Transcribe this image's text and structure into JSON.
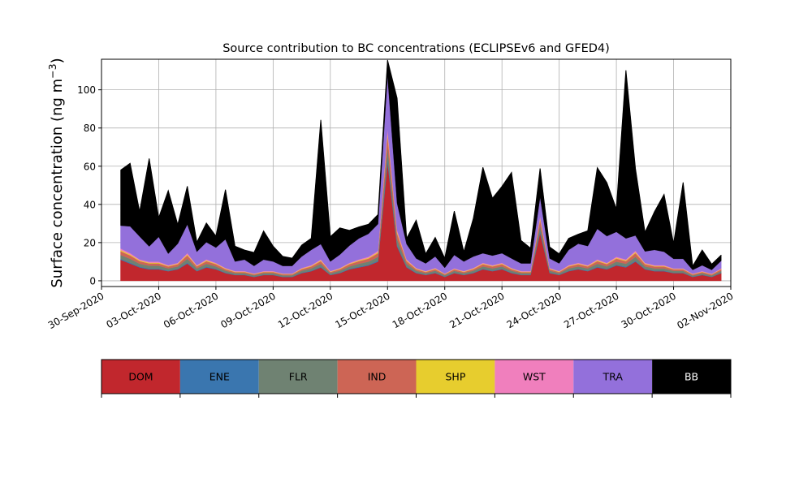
{
  "chart_data": {
    "type": "area",
    "stacked": true,
    "title": "Source contribution to BC concentrations (ECLIPSEv6 and GFED4)",
    "xlabel": "",
    "ylabel": "Surface concentration (ng m",
    "ylabel_sup": "−3",
    "ylabel_end": ")",
    "xlim": [
      "2020-09-30",
      "2020-11-02"
    ],
    "ylim": [
      -3,
      116
    ],
    "grid": true,
    "x_ticks": [
      "30-Sep-2020",
      "03-Oct-2020",
      "06-Oct-2020",
      "09-Oct-2020",
      "12-Oct-2020",
      "15-Oct-2020",
      "18-Oct-2020",
      "21-Oct-2020",
      "24-Oct-2020",
      "27-Oct-2020",
      "30-Oct-2020",
      "02-Nov-2020"
    ],
    "y_ticks": [
      0,
      20,
      40,
      60,
      80,
      100
    ],
    "legend_placement": "below",
    "x": [
      "2020-10-01",
      "2020-10-01T12",
      "2020-10-02",
      "2020-10-02T12",
      "2020-10-03",
      "2020-10-03T12",
      "2020-10-04",
      "2020-10-04T12",
      "2020-10-05",
      "2020-10-05T12",
      "2020-10-06",
      "2020-10-06T12",
      "2020-10-07",
      "2020-10-07T12",
      "2020-10-08",
      "2020-10-08T12",
      "2020-10-09",
      "2020-10-09T12",
      "2020-10-10",
      "2020-10-10T12",
      "2020-10-11",
      "2020-10-11T12",
      "2020-10-12",
      "2020-10-12T12",
      "2020-10-13",
      "2020-10-13T12",
      "2020-10-14",
      "2020-10-14T12",
      "2020-10-15",
      "2020-10-15T12",
      "2020-10-16",
      "2020-10-16T12",
      "2020-10-17",
      "2020-10-17T12",
      "2020-10-18",
      "2020-10-18T12",
      "2020-10-19",
      "2020-10-19T12",
      "2020-10-20",
      "2020-10-20T12",
      "2020-10-21",
      "2020-10-21T12",
      "2020-10-22",
      "2020-10-22T12",
      "2020-10-23",
      "2020-10-23T12",
      "2020-10-24",
      "2020-10-24T12",
      "2020-10-25",
      "2020-10-25T12",
      "2020-10-26",
      "2020-10-26T12",
      "2020-10-27",
      "2020-10-27T12",
      "2020-10-28",
      "2020-10-28T12",
      "2020-10-29",
      "2020-10-29T12",
      "2020-10-30",
      "2020-10-30T12",
      "2020-10-31",
      "2020-10-31T12",
      "2020-11-01",
      "2020-11-01T12"
    ],
    "series": [
      {
        "name": "DOM",
        "color": "#c1272d",
        "values": [
          11,
          9,
          7,
          6,
          6,
          5,
          6,
          9,
          5,
          7,
          6,
          4,
          3,
          3,
          2,
          3,
          3,
          2,
          2,
          4,
          5,
          7,
          3,
          4,
          6,
          7,
          8,
          10,
          62,
          18,
          7,
          4,
          3,
          4,
          2,
          4,
          3,
          4,
          6,
          5,
          6,
          4,
          3,
          3,
          25,
          4,
          3,
          5,
          6,
          5,
          7,
          6,
          8,
          7,
          10,
          6,
          5,
          5,
          4,
          4,
          2,
          3,
          2,
          4
        ]
      },
      {
        "name": "ENE",
        "color": "#3a76af",
        "values": [
          0.5,
          0.5,
          0.4,
          0.4,
          0.4,
          0.3,
          0.3,
          0.5,
          0.3,
          0.4,
          0.3,
          0.3,
          0.2,
          0.2,
          0.2,
          0.2,
          0.2,
          0.2,
          0.2,
          0.3,
          0.3,
          0.4,
          0.2,
          0.3,
          0.3,
          0.4,
          0.4,
          0.5,
          2.0,
          0.8,
          0.4,
          0.3,
          0.2,
          0.3,
          0.2,
          0.2,
          0.2,
          0.3,
          0.3,
          0.3,
          0.3,
          0.3,
          0.2,
          0.2,
          1.0,
          0.3,
          0.2,
          0.3,
          0.3,
          0.3,
          0.4,
          0.3,
          0.4,
          0.4,
          0.5,
          0.3,
          0.3,
          0.3,
          0.2,
          0.2,
          0.2,
          0.2,
          0.2,
          0.2
        ]
      },
      {
        "name": "FLR",
        "color": "#6f8272",
        "values": [
          2,
          2,
          1.5,
          1.5,
          1.5,
          1.2,
          1.2,
          2,
          1.2,
          1.5,
          1.2,
          1,
          0.8,
          0.8,
          0.7,
          0.8,
          0.8,
          0.7,
          0.7,
          1,
          1.2,
          1.5,
          0.8,
          1,
          1.2,
          1.5,
          1.6,
          2,
          6,
          3,
          1.5,
          1,
          0.8,
          1,
          0.7,
          1,
          0.8,
          1,
          1.2,
          1.2,
          1.2,
          1,
          0.8,
          0.8,
          3,
          1,
          0.8,
          1.2,
          1.2,
          1.2,
          1.5,
          1.2,
          1.6,
          1.5,
          2,
          1.2,
          1.2,
          1.2,
          1,
          1,
          0.6,
          0.8,
          0.6,
          1
        ]
      },
      {
        "name": "IND",
        "color": "#cd6555",
        "values": [
          2,
          1.8,
          1.4,
          1.2,
          1.2,
          1,
          1.2,
          1.8,
          1,
          1.4,
          1.2,
          0.8,
          0.6,
          0.6,
          0.5,
          0.6,
          0.6,
          0.5,
          0.5,
          0.8,
          1,
          1.4,
          0.6,
          0.8,
          1.2,
          1.4,
          1.6,
          2,
          6,
          3,
          1.4,
          0.8,
          0.6,
          0.8,
          0.5,
          0.8,
          0.6,
          0.8,
          1.2,
          1,
          1.2,
          0.8,
          0.6,
          0.6,
          3,
          0.8,
          0.6,
          1,
          1.2,
          1,
          1.4,
          1.2,
          1.6,
          1.4,
          2,
          1.2,
          1,
          1,
          0.8,
          0.8,
          0.5,
          0.6,
          0.5,
          0.8
        ]
      },
      {
        "name": "SHP",
        "color": "#e7cd2e",
        "values": [
          0.6,
          0.5,
          0.4,
          0.4,
          0.4,
          0.3,
          0.3,
          0.5,
          0.3,
          0.4,
          0.3,
          0.3,
          0.2,
          0.2,
          0.2,
          0.2,
          0.2,
          0.2,
          0.2,
          0.3,
          0.3,
          0.4,
          0.2,
          0.3,
          0.3,
          0.4,
          0.4,
          0.5,
          1.5,
          0.8,
          0.4,
          0.3,
          0.2,
          0.3,
          0.2,
          0.2,
          0.2,
          0.3,
          0.3,
          0.3,
          0.3,
          0.3,
          0.2,
          0.2,
          0.8,
          0.3,
          0.2,
          0.3,
          0.3,
          0.3,
          0.4,
          0.3,
          0.4,
          0.4,
          0.5,
          0.3,
          0.3,
          0.3,
          0.2,
          0.2,
          0.2,
          0.2,
          0.2,
          0.2
        ]
      },
      {
        "name": "WST",
        "color": "#f07fbd",
        "values": [
          0.8,
          0.7,
          0.5,
          0.5,
          0.5,
          0.4,
          0.4,
          0.7,
          0.4,
          0.5,
          0.4,
          0.3,
          0.3,
          0.3,
          0.2,
          0.3,
          0.3,
          0.2,
          0.2,
          0.3,
          0.4,
          0.5,
          0.3,
          0.3,
          0.4,
          0.5,
          0.6,
          0.7,
          2,
          1,
          0.5,
          0.3,
          0.3,
          0.3,
          0.2,
          0.3,
          0.3,
          0.3,
          0.4,
          0.4,
          0.4,
          0.3,
          0.3,
          0.3,
          1,
          0.3,
          0.3,
          0.4,
          0.4,
          0.4,
          0.5,
          0.4,
          0.6,
          0.5,
          0.7,
          0.4,
          0.4,
          0.4,
          0.3,
          0.3,
          0.2,
          0.3,
          0.2,
          0.3
        ]
      },
      {
        "name": "TRA",
        "color": "#9370db",
        "values": [
          12,
          14,
          12,
          8,
          13,
          6,
          10,
          15,
          7,
          9,
          8,
          15,
          5,
          6,
          4,
          6,
          5,
          4,
          4,
          6,
          8,
          8,
          5,
          7,
          9,
          11,
          12,
          14,
          28,
          14,
          8,
          5,
          4,
          6,
          3,
          7,
          5,
          6,
          5,
          5,
          5,
          5,
          4,
          4,
          10,
          5,
          4,
          8,
          10,
          10,
          16,
          14,
          13,
          11,
          8,
          6,
          8,
          7,
          5,
          5,
          2,
          3,
          2,
          4
        ]
      },
      {
        "name": "BB",
        "color": "#000000",
        "values": [
          29,
          33,
          13,
          46,
          10,
          33,
          10,
          20,
          5,
          10,
          6,
          26,
          8,
          5,
          7,
          15,
          8,
          5,
          4,
          6,
          6,
          65,
          13,
          14,
          8,
          6,
          5,
          5,
          8,
          55,
          3,
          20,
          5,
          10,
          5,
          23,
          5,
          20,
          45,
          30,
          35,
          45,
          12,
          8,
          15,
          6,
          5,
          6,
          5,
          8,
          32,
          28,
          12,
          88,
          35,
          10,
          20,
          30,
          8,
          40,
          2,
          8,
          3,
          3
        ]
      }
    ]
  }
}
